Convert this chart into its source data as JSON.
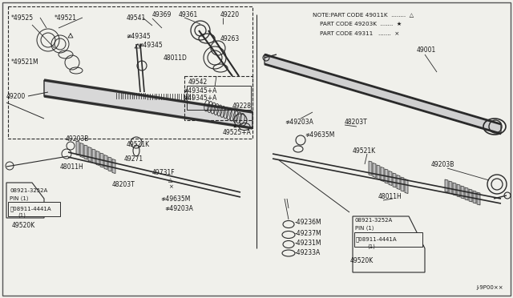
{
  "bg_color": "#f0f0eb",
  "line_color": "#2a2a2a",
  "text_color": "#1a1a1a",
  "note_lines": [
    "NOTE:PART CODE 49011K  ........  △",
    "    PART CODE 49203K  .......  ★",
    "    PART CODE 49311   .......  ×"
  ],
  "diagram_ref": "J-9P00××",
  "white": "#ffffff",
  "gray": "#888888",
  "light_gray": "#cccccc"
}
